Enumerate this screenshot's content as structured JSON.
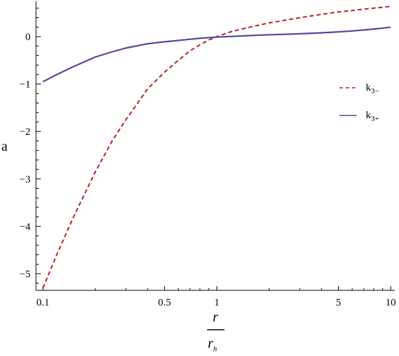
{
  "chart_data": {
    "type": "line",
    "xscale": "log",
    "xlim": [
      0.1,
      10
    ],
    "ylim": [
      -5.3,
      0.7
    ],
    "x_ticks": [
      {
        "value": 0.1,
        "label": "0.1"
      },
      {
        "value": 0.5,
        "label": "0.5"
      },
      {
        "value": 1,
        "label": "1"
      },
      {
        "value": 5,
        "label": "5"
      },
      {
        "value": 10,
        "label": "10"
      }
    ],
    "y_ticks": [
      {
        "value": 0,
        "label": "0"
      },
      {
        "value": -1,
        "label": "−1"
      },
      {
        "value": -2,
        "label": "−2"
      },
      {
        "value": -3,
        "label": "−3"
      },
      {
        "value": -4,
        "label": "−4"
      },
      {
        "value": -5,
        "label": "−5"
      }
    ],
    "xlabel_numerator": "r",
    "xlabel_denominator": "r",
    "xlabel_denominator_sub": "h",
    "ylabel": "a",
    "legend_position": "right",
    "series": [
      {
        "name": "k",
        "name_sub": "3−",
        "color": "#b22222",
        "style": "dashed",
        "points": [
          [
            0.1,
            -5.3
          ],
          [
            0.12,
            -4.6
          ],
          [
            0.15,
            -3.8
          ],
          [
            0.2,
            -2.85
          ],
          [
            0.25,
            -2.2
          ],
          [
            0.3,
            -1.75
          ],
          [
            0.4,
            -1.1
          ],
          [
            0.5,
            -0.75
          ],
          [
            0.6,
            -0.5
          ],
          [
            0.7,
            -0.3
          ],
          [
            0.8,
            -0.17
          ],
          [
            0.9,
            -0.07
          ],
          [
            1.0,
            0.0
          ],
          [
            1.2,
            0.1
          ],
          [
            1.5,
            0.19
          ],
          [
            2,
            0.29
          ],
          [
            3,
            0.4
          ],
          [
            4,
            0.47
          ],
          [
            5,
            0.52
          ],
          [
            6,
            0.55
          ],
          [
            7,
            0.58
          ],
          [
            8,
            0.6
          ],
          [
            9,
            0.62
          ],
          [
            10,
            0.64
          ]
        ]
      },
      {
        "name": "k",
        "name_sub": "3+",
        "color": "#4b4b9b",
        "style": "solid",
        "points": [
          [
            0.1,
            -0.95
          ],
          [
            0.12,
            -0.8
          ],
          [
            0.15,
            -0.63
          ],
          [
            0.2,
            -0.43
          ],
          [
            0.25,
            -0.32
          ],
          [
            0.3,
            -0.24
          ],
          [
            0.4,
            -0.15
          ],
          [
            0.5,
            -0.11
          ],
          [
            0.6,
            -0.08
          ],
          [
            0.7,
            -0.055
          ],
          [
            0.8,
            -0.035
          ],
          [
            0.9,
            -0.02
          ],
          [
            1.0,
            -0.01
          ],
          [
            1.5,
            0.02
          ],
          [
            2,
            0.04
          ],
          [
            3,
            0.06
          ],
          [
            4,
            0.08
          ],
          [
            5,
            0.1
          ],
          [
            6,
            0.12
          ],
          [
            7,
            0.14
          ],
          [
            8,
            0.16
          ],
          [
            9,
            0.18
          ],
          [
            10,
            0.2
          ]
        ]
      }
    ]
  }
}
